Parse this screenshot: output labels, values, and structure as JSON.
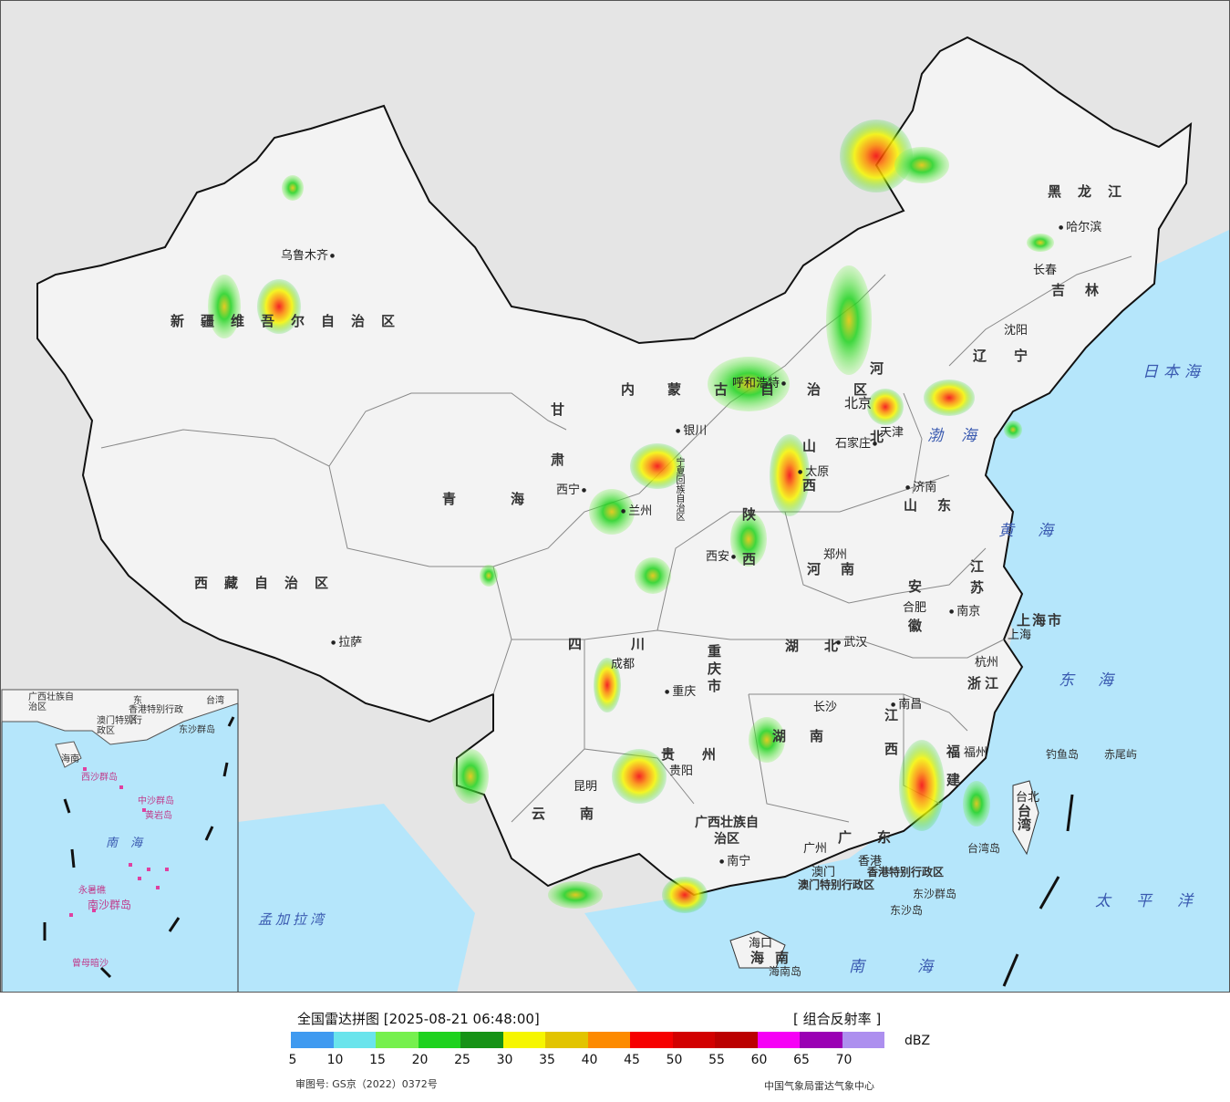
{
  "legend": {
    "title": "全国雷达拼图 [2025-08-21 06:48:00]",
    "product": "[ 组合反射率 ]",
    "unit": "dBZ",
    "ticks": [
      "5",
      "10",
      "15",
      "20",
      "25",
      "30",
      "35",
      "40",
      "45",
      "50",
      "55",
      "60",
      "65",
      "70"
    ],
    "colors": [
      "#3f9af0",
      "#6ae4ec",
      "#76f04e",
      "#1ed21e",
      "#169216",
      "#f6f600",
      "#e2c400",
      "#fd8a00",
      "#f60000",
      "#d20000",
      "#bb0000",
      "#f600f6",
      "#9a00b4",
      "#ad8fef"
    ],
    "map_review_no": "审图号: GS京（2022）0372号",
    "credit": "中国气象局雷达气象中心"
  },
  "provinces": {
    "xinjiang": "新疆维吾尔自治区",
    "xizang": "西藏自治区",
    "qinghai": "青海",
    "gansu": "甘肃",
    "neimenggu": "内蒙古自治区",
    "heilongjiang": "黑龙江",
    "jilin": "吉林",
    "liaoning": "辽宁",
    "hebei": "河北",
    "shanxi": "山西",
    "shaanxi": "陕西",
    "ningxia": "宁夏回族自治区",
    "henan": "河南",
    "shandong": "山东",
    "jiangsu": "江苏",
    "anhui": "安徽",
    "shanghai": "上海市",
    "zhejiang": "浙江",
    "hubei": "湖北",
    "hunan": "湖南",
    "jiangxi": "江西",
    "fujian": "福建",
    "sichuan": "四川",
    "chongqing": "重庆市",
    "guizhou": "贵州",
    "yunnan": "云南",
    "guangxi": "广西壮族自治区",
    "guangdong": "广东",
    "hainan": "海南",
    "taiwan": "台湾",
    "hongkong": "香港特别行政区",
    "macau": "澳门特别行政区",
    "gansu2": "甘肃"
  },
  "cities": {
    "urumqi": "乌鲁木齐",
    "lhasa": "拉萨",
    "xining": "西宁",
    "lanzhou": "兰州",
    "yinchuan": "银川",
    "hohhot": "呼和浩特",
    "beijing": "北京",
    "tianjin": "天津",
    "shijiazhuang": "石家庄",
    "taiyuan": "太原",
    "xian": "西安",
    "zhengzhou": "郑州",
    "jinan": "济南",
    "shenyang": "沈阳",
    "changchun": "长春",
    "harbin": "哈尔滨",
    "nanjing": "南京",
    "hefei": "合肥",
    "shanghai": "上海",
    "hangzhou": "杭州",
    "wuhan": "武汉",
    "changsha": "长沙",
    "nanchang": "南昌",
    "fuzhou": "福州",
    "taipei": "台北",
    "chengdu": "成都",
    "chongqing": "重庆",
    "guiyang": "贵阳",
    "kunming": "昆明",
    "nanning": "南宁",
    "guangzhou": "广州",
    "hongkong": "香港",
    "macau": "澳门",
    "haikou": "海口"
  },
  "seas": {
    "japan_sea": "日本海",
    "bohai": "渤海",
    "yellow_sea": "黄海",
    "east_sea": "东海",
    "pacific": "太平洋",
    "south_sea": "南海",
    "bengal": "孟加拉湾"
  },
  "islands": {
    "diaoyu": "钓鱼岛",
    "chiwei": "赤尾屿",
    "taiwan_island": "台湾岛",
    "dongsha_islands": "东沙群岛",
    "dongsha_island": "东沙岛",
    "hainan_island": "海南岛"
  },
  "inset": {
    "guangxi": "广西壮族自治区",
    "guangdong": "东",
    "taiwan": "台湾",
    "hk": "香港特别行政区",
    "macau": "澳门特别行政区",
    "dongsha": "东沙群岛",
    "hainan": "海南",
    "xisha": "西沙群岛",
    "zhongsha": "中沙群岛",
    "huangyan": "黄岩岛",
    "nanhai": "南海",
    "nansha": "南沙群岛",
    "yongshu": "永暑礁",
    "zengmu": "曾母暗沙"
  }
}
